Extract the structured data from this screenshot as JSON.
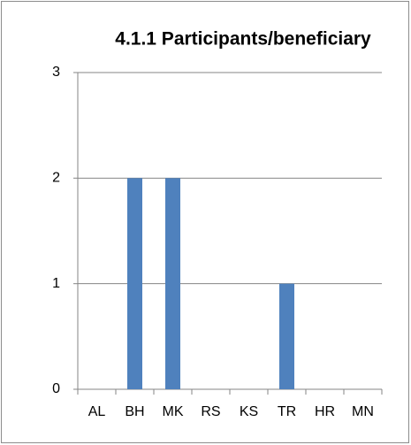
{
  "chart_data": {
    "type": "bar",
    "title": "4.1.1 Participants/beneficiary",
    "categories": [
      "AL",
      "BH",
      "MK",
      "RS",
      "KS",
      "TR",
      "HR",
      "MN"
    ],
    "values": [
      0,
      2,
      2,
      0,
      0,
      1,
      0,
      0
    ],
    "color": "#4f81bd",
    "ylim": [
      0,
      3
    ],
    "yticks": [
      0,
      1,
      2,
      3
    ],
    "grid": true
  }
}
